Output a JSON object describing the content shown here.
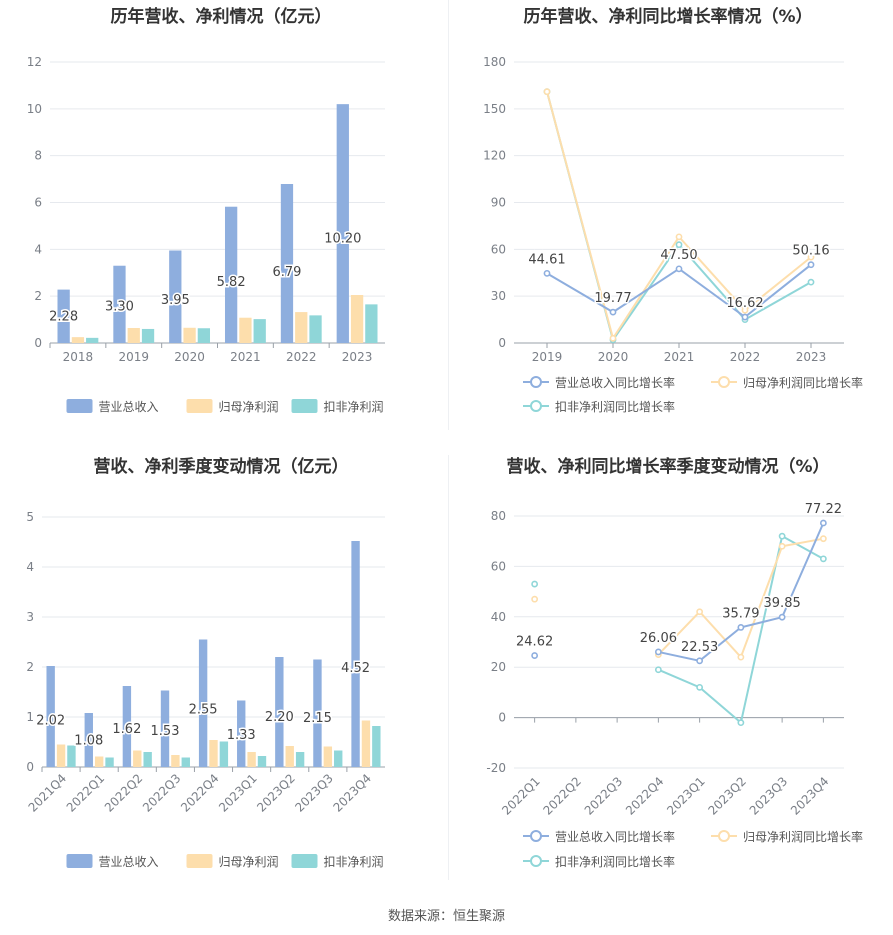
{
  "source_text": "数据来源：恒生聚源",
  "colors": {
    "revenue": "#8eaede",
    "net": "#fddeac",
    "deducted": "#8fd6d8",
    "grid": "#e6e9ee",
    "axis": "#9aa0a8",
    "text": "#7a7f87",
    "title": "#333333",
    "label": "#444444"
  },
  "chart_data": [
    {
      "type": "bar",
      "title": "历年营收、净利情况（亿元）",
      "categories": [
        "2018",
        "2019",
        "2020",
        "2021",
        "2022",
        "2023"
      ],
      "ylim": [
        0,
        12
      ],
      "yticks": [
        "0",
        "2",
        "4",
        "6",
        "8",
        "10",
        "12"
      ],
      "grid": true,
      "legend_position": "bottom",
      "series": [
        {
          "name": "营业总收入",
          "values": [
            2.28,
            3.3,
            3.95,
            5.82,
            6.79,
            10.2
          ],
          "labels": [
            "2.28",
            "3.30",
            "3.95",
            "5.82",
            "6.79",
            "10.20"
          ]
        },
        {
          "name": "归母净利润",
          "values": [
            0.25,
            0.64,
            0.65,
            1.08,
            1.32,
            2.05
          ]
        },
        {
          "name": "扣非净利润",
          "values": [
            0.22,
            0.6,
            0.63,
            1.02,
            1.18,
            1.65
          ]
        }
      ]
    },
    {
      "type": "line",
      "title": "历年营收、净利同比增长率情况（%）",
      "categories": [
        "2019",
        "2020",
        "2021",
        "2022",
        "2023"
      ],
      "ylim": [
        0,
        180
      ],
      "yticks": [
        "0",
        "30",
        "60",
        "90",
        "120",
        "150",
        "180"
      ],
      "grid": true,
      "legend_position": "bottom",
      "series": [
        {
          "name": "营业总收入同比增长率",
          "values": [
            44.61,
            19.77,
            47.5,
            16.62,
            50.16
          ],
          "labels": [
            "44.61",
            "19.77",
            "47.50",
            "16.62",
            "50.16"
          ]
        },
        {
          "name": "归母净利润同比增长率",
          "values": [
            161,
            3,
            68,
            21,
            55
          ]
        },
        {
          "name": "扣非净利润同比增长率",
          "values": [
            161,
            2,
            63,
            15,
            39
          ]
        }
      ]
    },
    {
      "type": "bar",
      "title": "营收、净利季度变动情况（亿元）",
      "categories": [
        "2021Q4",
        "2022Q1",
        "2022Q2",
        "2022Q3",
        "2022Q4",
        "2023Q1",
        "2023Q2",
        "2023Q3",
        "2023Q4"
      ],
      "ylim": [
        0,
        5
      ],
      "yticks": [
        "0",
        "1",
        "2",
        "3",
        "4",
        "5"
      ],
      "grid": true,
      "legend_position": "bottom",
      "series": [
        {
          "name": "营业总收入",
          "values": [
            2.02,
            1.08,
            1.62,
            1.53,
            2.55,
            1.33,
            2.2,
            2.15,
            4.52
          ],
          "labels": [
            "2.02",
            "1.08",
            "1.62",
            "1.53",
            "2.55",
            "1.33",
            "2.20",
            "2.15",
            "4.52"
          ]
        },
        {
          "name": "归母净利润",
          "values": [
            0.45,
            0.21,
            0.33,
            0.24,
            0.54,
            0.3,
            0.42,
            0.41,
            0.93
          ]
        },
        {
          "name": "扣非净利润",
          "values": [
            0.43,
            0.19,
            0.3,
            0.19,
            0.51,
            0.22,
            0.3,
            0.33,
            0.82
          ]
        }
      ]
    },
    {
      "type": "line",
      "title": "营收、净利同比增长率季度变动情况（%）",
      "categories": [
        "2022Q1",
        "2022Q2",
        "2022Q3",
        "2022Q4",
        "2023Q1",
        "2023Q2",
        "2023Q3",
        "2023Q4"
      ],
      "ylim": [
        -20,
        80
      ],
      "yticks": [
        "-20",
        "0",
        "20",
        "40",
        "60",
        "80"
      ],
      "grid": true,
      "legend_position": "bottom",
      "series": [
        {
          "name": "营业总收入同比增长率",
          "values": [
            24.62,
            null,
            null,
            26.06,
            22.53,
            35.79,
            39.85,
            77.22
          ],
          "labels": [
            "24.62",
            "",
            "",
            "26.06",
            "22.53",
            "35.79",
            "39.85",
            "77.22"
          ]
        },
        {
          "name": "归母净利润同比增长率",
          "values": [
            47,
            null,
            null,
            25,
            42,
            24,
            68,
            71
          ]
        },
        {
          "name": "扣非净利润同比增长率",
          "values": [
            53,
            null,
            null,
            19,
            12,
            -2,
            72,
            63
          ]
        }
      ]
    }
  ]
}
